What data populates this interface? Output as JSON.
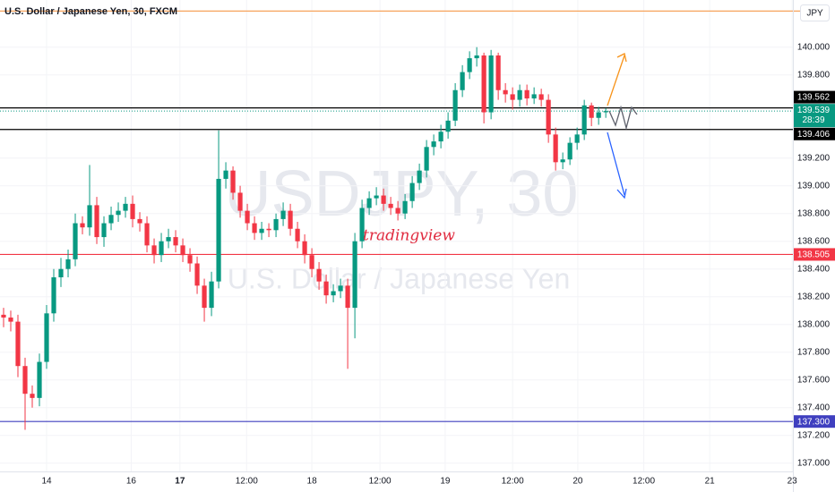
{
  "chart_data": {
    "type": "candlestick",
    "title": "U.S. Dollar / Japanese Yen, 30, FXCM",
    "currency": "JPY",
    "watermark": {
      "symbol": "USDJPY, 30",
      "description": "U.S. Dollar / Japanese Yen"
    },
    "annotation": {
      "text": "tradingview",
      "color": "#e02a3e"
    },
    "up_color": "#089981",
    "down_color": "#f23645",
    "grid": true,
    "ylim": [
      136.94,
      140.34
    ],
    "xlim": [
      -0.5,
      110.1
    ],
    "yticks": [
      {
        "value": 140,
        "label": "140.000"
      },
      {
        "value": 139.8,
        "label": "139.800"
      },
      {
        "value": 139.2,
        "label": "139.200"
      },
      {
        "value": 139,
        "label": "139.000"
      },
      {
        "value": 138.8,
        "label": "138.800"
      },
      {
        "value": 138.6,
        "label": "138.600"
      },
      {
        "value": 138.4,
        "label": "138.400"
      },
      {
        "value": 138.2,
        "label": "138.200"
      },
      {
        "value": 138,
        "label": "138.000"
      },
      {
        "value": 137.8,
        "label": "137.800"
      },
      {
        "value": 137.6,
        "label": "137.600"
      },
      {
        "value": 137.4,
        "label": "137.400"
      },
      {
        "value": 137.2,
        "label": "137.200"
      },
      {
        "value": 137,
        "label": "137.000"
      }
    ],
    "xticks": [
      {
        "value": 6,
        "label": "14"
      },
      {
        "value": 17.8,
        "label": "16"
      },
      {
        "value": 24.6,
        "label": "17",
        "bold": true
      },
      {
        "value": 33.9,
        "label": "12:00"
      },
      {
        "value": 43,
        "label": "18"
      },
      {
        "value": 52.5,
        "label": "12:00"
      },
      {
        "value": 61.6,
        "label": "19"
      },
      {
        "value": 71,
        "label": "12:00"
      },
      {
        "value": 80.1,
        "label": "20"
      },
      {
        "value": 89.3,
        "label": "12:00"
      },
      {
        "value": 98.5,
        "label": "21"
      },
      {
        "value": 110,
        "label": "23"
      }
    ],
    "lines": [
      {
        "value": 140.26,
        "color": "#f7a35c"
      },
      {
        "value": 139.562,
        "label": "139.562",
        "color": "#000000"
      },
      {
        "value": 139.406,
        "label": "139.406",
        "color": "#000000"
      },
      {
        "value": 138.505,
        "label": "138.505",
        "color": "#f23645"
      },
      {
        "value": 137.3,
        "label": "137.300",
        "color": "#3f3fbf"
      }
    ],
    "last_price": 139.539,
    "countdown": "28:39",
    "open": [
      138.07,
      138.05,
      138.02,
      137.7,
      137.5,
      137.47,
      137.73,
      138.08,
      138.34,
      138.4,
      138.47,
      138.73,
      138.7,
      138.86,
      138.63,
      138.73,
      138.79,
      138.82,
      138.87,
      138.76,
      138.73,
      138.57,
      138.5,
      138.6,
      138.63,
      138.57,
      138.5,
      138.44,
      138.28,
      138.12,
      138.31,
      139.05,
      139.11,
      138.95,
      138.82,
      138.73,
      138.66,
      138.69,
      138.68,
      138.76,
      138.82,
      138.69,
      138.6,
      138.5,
      138.4,
      138.31,
      138.21,
      138.24,
      138.28,
      138.12,
      138.6,
      138.84,
      138.91,
      138.93,
      138.87,
      138.84,
      138.8,
      138.89,
      139.02,
      139.11,
      139.28,
      139.32,
      139.39,
      139.47,
      139.69,
      139.82,
      139.92,
      139.94,
      139.53,
      139.94,
      139.69,
      139.66,
      139.62,
      139.69,
      139.63,
      139.66,
      139.62,
      139.37,
      139.17,
      139.19,
      139.31,
      139.37,
      139.58,
      139.49,
      139.53
    ],
    "high": [
      138.12,
      138.1,
      138.07,
      137.76,
      137.56,
      137.79,
      138.14,
      138.4,
      138.48,
      138.54,
      138.8,
      138.78,
      139.15,
      138.92,
      138.78,
      138.85,
      138.88,
      138.92,
      138.93,
      138.81,
      138.78,
      138.62,
      138.66,
      138.69,
      138.68,
      138.62,
      138.55,
      138.49,
      138.33,
      138.38,
      139.4,
      139.17,
      139.14,
      139.0,
      138.87,
      138.78,
      138.74,
      138.73,
      138.8,
      138.88,
      138.87,
      138.74,
      138.65,
      138.55,
      138.45,
      138.36,
      138.29,
      138.33,
      138.33,
      138.66,
      138.9,
      138.96,
      138.99,
      138.98,
      138.92,
      138.89,
      138.94,
      139.07,
      139.16,
      139.33,
      139.37,
      139.44,
      139.53,
      139.74,
      139.87,
      139.97,
      140.0,
      139.96,
      139.98,
      139.96,
      139.74,
      139.71,
      139.73,
      139.73,
      139.71,
      139.7,
      139.66,
      139.42,
      139.24,
      139.35,
      139.42,
      139.62,
      139.6,
      139.57,
      139.56
    ],
    "low": [
      137.98,
      137.95,
      137.62,
      137.24,
      137.4,
      137.41,
      137.68,
      138.02,
      138.27,
      138.34,
      138.42,
      138.65,
      138.64,
      138.58,
      138.56,
      138.68,
      138.74,
      138.77,
      138.7,
      138.67,
      138.52,
      138.44,
      138.45,
      138.55,
      138.52,
      138.45,
      138.38,
      138.22,
      138.02,
      138.06,
      138.26,
      138.98,
      138.9,
      138.77,
      138.68,
      138.61,
      138.61,
      138.63,
      138.63,
      138.71,
      138.64,
      138.55,
      138.44,
      138.34,
      138.25,
      138.15,
      138.16,
      138.19,
      137.68,
      137.9,
      138.55,
      138.79,
      138.86,
      138.82,
      138.79,
      138.75,
      138.76,
      138.84,
      138.97,
      139.06,
      139.22,
      139.27,
      139.34,
      139.43,
      139.64,
      139.77,
      139.86,
      139.45,
      139.48,
      139.62,
      139.6,
      139.55,
      139.57,
      139.58,
      139.59,
      139.57,
      139.31,
      139.11,
      139.12,
      139.15,
      139.26,
      139.33,
      139.43,
      139.44,
      139.49
    ],
    "close": [
      138.05,
      138.02,
      137.7,
      137.5,
      137.47,
      137.73,
      138.08,
      138.34,
      138.4,
      138.47,
      138.73,
      138.7,
      138.86,
      138.63,
      138.73,
      138.79,
      138.82,
      138.87,
      138.76,
      138.73,
      138.57,
      138.5,
      138.6,
      138.63,
      138.57,
      138.5,
      138.44,
      138.28,
      138.12,
      138.31,
      139.05,
      139.11,
      138.95,
      138.82,
      138.73,
      138.66,
      138.69,
      138.68,
      138.76,
      138.82,
      138.69,
      138.6,
      138.5,
      138.4,
      138.31,
      138.21,
      138.24,
      138.28,
      138.12,
      138.6,
      138.84,
      138.91,
      138.93,
      138.87,
      138.84,
      138.8,
      138.89,
      139.02,
      139.11,
      139.28,
      139.32,
      139.39,
      139.47,
      139.69,
      139.82,
      139.92,
      139.94,
      139.53,
      139.94,
      139.69,
      139.66,
      139.62,
      139.69,
      139.63,
      139.66,
      139.62,
      139.37,
      139.17,
      139.19,
      139.31,
      139.37,
      139.58,
      139.49,
      139.53,
      139.539
    ]
  }
}
